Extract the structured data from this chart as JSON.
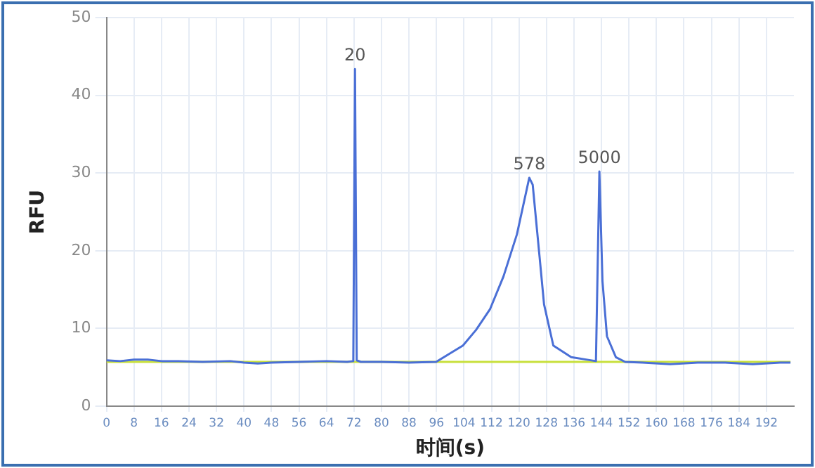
{
  "chart_data": {
    "type": "line",
    "xlabel": "时间(s)",
    "ylabel": "RFU",
    "xlim": [
      0,
      200
    ],
    "xticks": [
      0,
      8,
      16,
      24,
      32,
      40,
      48,
      56,
      64,
      72,
      80,
      88,
      96,
      104,
      112,
      120,
      128,
      136,
      144,
      152,
      160,
      168,
      176,
      184,
      192
    ],
    "ylim": [
      0,
      50
    ],
    "yticks": [
      0,
      10,
      20,
      30,
      40,
      50
    ],
    "grid": true,
    "legend": false,
    "marker": "none",
    "line_style": "solid",
    "series": [
      {
        "color": "#4a6fd6",
        "x": [
          0,
          4,
          8,
          12,
          16,
          20,
          28,
          36,
          40,
          44,
          48,
          56,
          64,
          70,
          71.8,
          72.3,
          72.8,
          74,
          80,
          88,
          95.9,
          100,
          103.7,
          107.5,
          111.6,
          115.5,
          119.4,
          123,
          124,
          126,
          127.3,
          130,
          135.2,
          142.4,
          143.4,
          144.3,
          145.6,
          148.2,
          150.9,
          156,
          164,
          172,
          180,
          188,
          196,
          199
        ],
        "values": [
          5.9,
          5.8,
          6.0,
          6.0,
          5.8,
          5.8,
          5.7,
          5.8,
          5.6,
          5.5,
          5.6,
          5.7,
          5.8,
          5.7,
          5.8,
          43.4,
          5.9,
          5.7,
          5.7,
          5.6,
          5.7,
          6.8,
          7.8,
          9.8,
          12.5,
          16.7,
          22.1,
          29.4,
          28.5,
          19.2,
          13.1,
          7.8,
          6.3,
          5.8,
          30.2,
          16.1,
          9.0,
          6.3,
          5.7,
          5.6,
          5.4,
          5.6,
          5.6,
          5.4,
          5.6,
          5.6
        ]
      },
      {
        "color": "#c8e03c",
        "x": [
          0,
          199
        ],
        "values": [
          5.7,
          5.7
        ]
      }
    ],
    "annotations": [
      {
        "text": "20",
        "x": 72.3,
        "y": 43.4
      },
      {
        "text": "578",
        "x": 123,
        "y": 29.4
      },
      {
        "text": "5000",
        "x": 143.4,
        "y": 30.2
      }
    ]
  }
}
